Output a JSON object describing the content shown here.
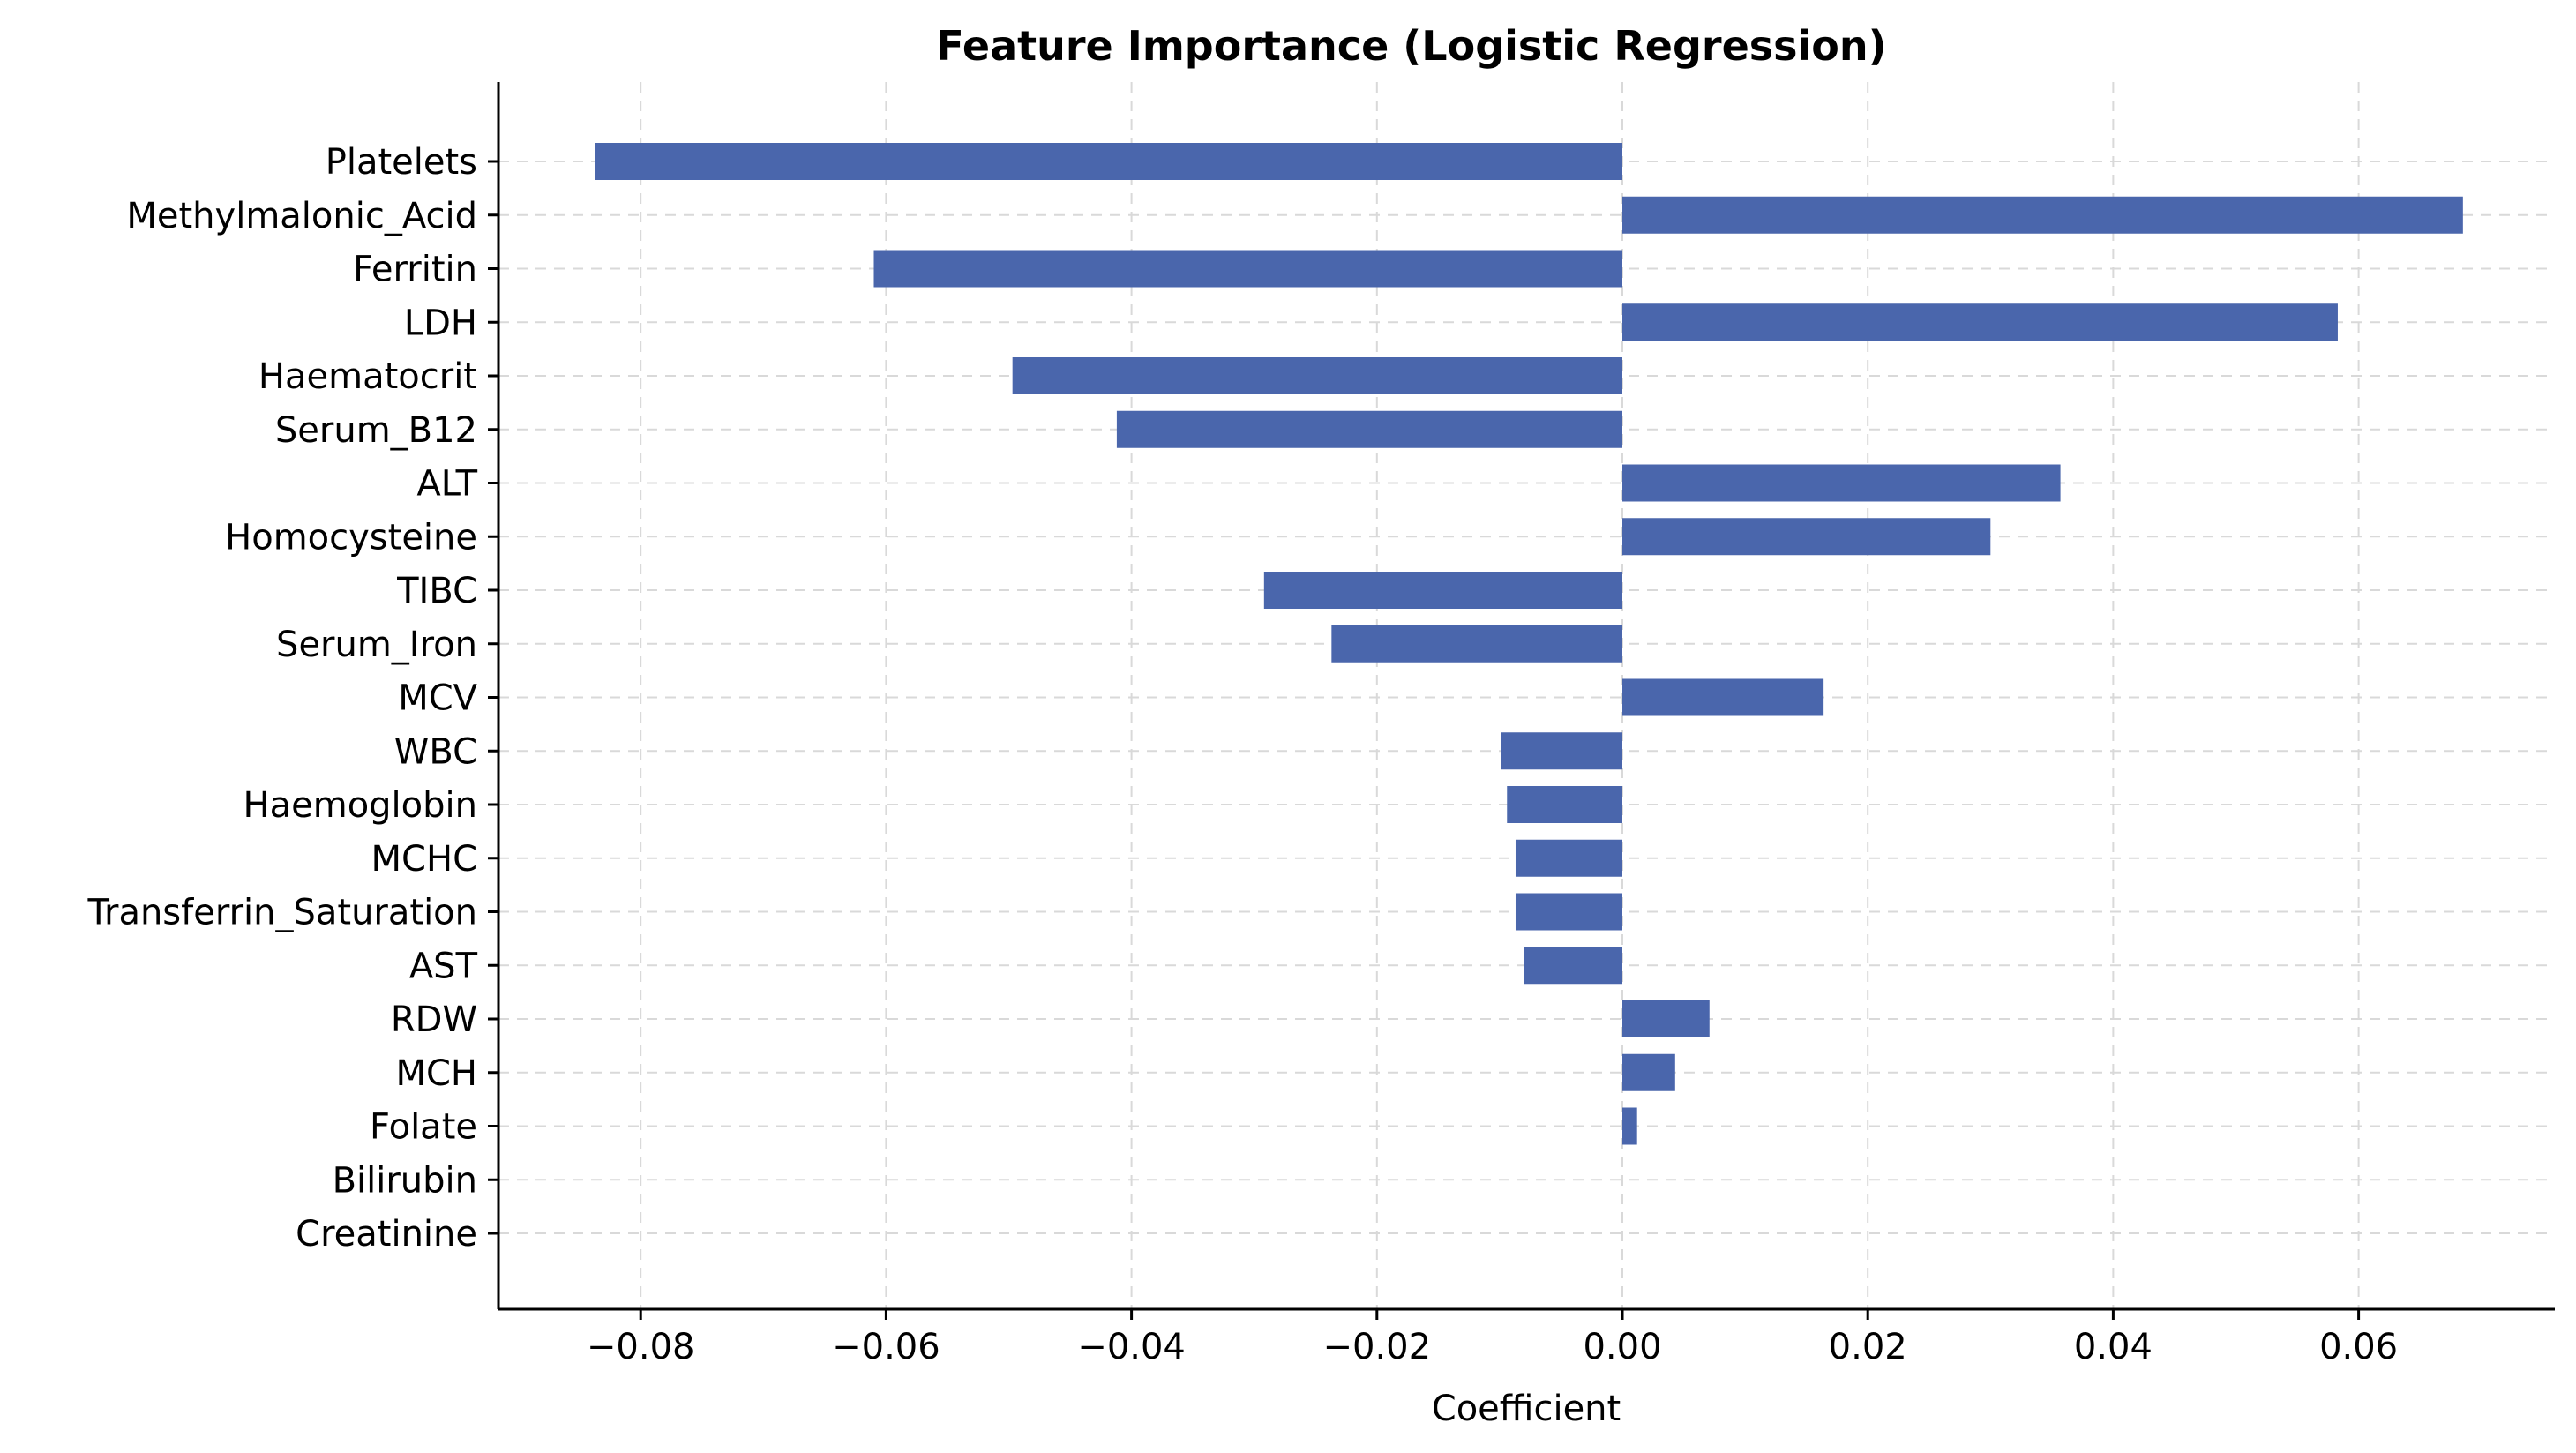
{
  "chart_data": {
    "type": "bar",
    "orientation": "horizontal",
    "title": "Feature Importance (Logistic Regression)",
    "xlabel": "Coefficient",
    "ylabel": "",
    "xlim": [
      -0.092,
      0.076
    ],
    "xticks": [
      -0.08,
      -0.06,
      -0.04,
      -0.02,
      0.0,
      0.02,
      0.04,
      0.06
    ],
    "xtick_labels": [
      "−0.08",
      "−0.06",
      "−0.04",
      "−0.02",
      "0.00",
      "0.02",
      "0.04",
      "0.06"
    ],
    "grid": true,
    "bar_color": "#4a66ac",
    "categories": [
      "Platelets",
      "Methylmalonic_Acid",
      "Ferritin",
      "LDH",
      "Haematocrit",
      "Serum_B12",
      "ALT",
      "Homocysteine",
      "TIBC",
      "Serum_Iron",
      "MCV",
      "WBC",
      "Haemoglobin",
      "MCHC",
      "Transferrin_Saturation",
      "AST",
      "RDW",
      "MCH",
      "Folate",
      "Bilirubin",
      "Creatinine"
    ],
    "values": [
      -0.0837,
      0.0685,
      -0.061,
      0.0583,
      -0.0497,
      -0.0412,
      0.0357,
      0.03,
      -0.0292,
      -0.0237,
      0.0164,
      -0.0099,
      -0.0094,
      -0.0087,
      -0.0087,
      -0.008,
      0.0071,
      0.0043,
      0.0012,
      0.0,
      0.0
    ]
  }
}
